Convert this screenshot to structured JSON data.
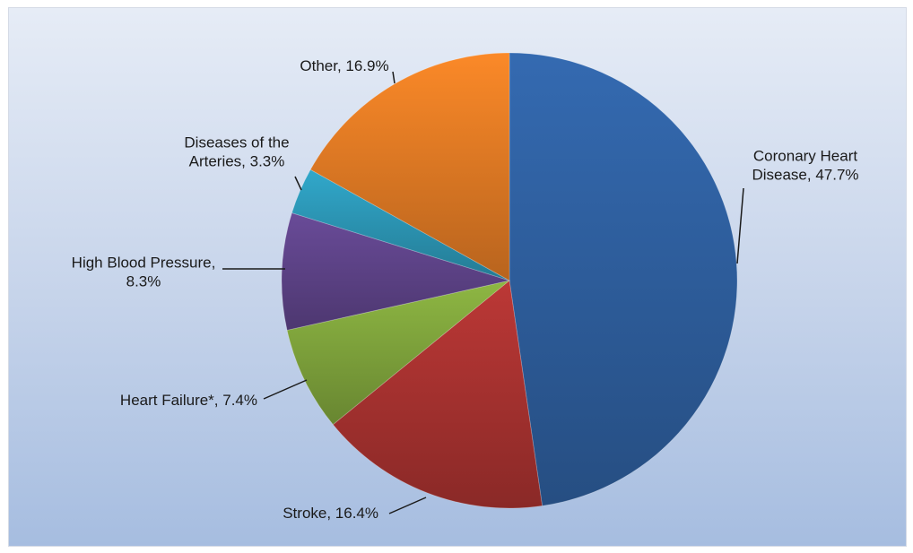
{
  "chart_data": {
    "type": "pie",
    "title": "",
    "start_angle_deg": 0,
    "direction": "clockwise",
    "slices": [
      {
        "label_lines": [
          "Coronary Heart",
          "Disease, 47.7%"
        ],
        "category": "Coronary Heart Disease",
        "value": 47.7,
        "color": "#2e5f9e"
      },
      {
        "label_lines": [
          "Stroke, 16.4%"
        ],
        "category": "Stroke",
        "value": 16.4,
        "color": "#a83230"
      },
      {
        "label_lines": [
          "Heart Failure*, 7.4%"
        ],
        "category": "Heart Failure*",
        "value": 7.4,
        "color": "#7fa33c"
      },
      {
        "label_lines": [
          "High Blood Pressure,",
          "8.3%"
        ],
        "category": "High Blood Pressure",
        "value": 8.3,
        "color": "#5e4388"
      },
      {
        "label_lines": [
          "Diseases of the",
          "Arteries, 3.3%"
        ],
        "category": "Diseases of the Arteries",
        "value": 3.3,
        "color": "#2c96b5"
      },
      {
        "label_lines": [
          "Other, 16.9%"
        ],
        "category": "Other",
        "value": 16.9,
        "color": "#e07a24"
      }
    ]
  }
}
